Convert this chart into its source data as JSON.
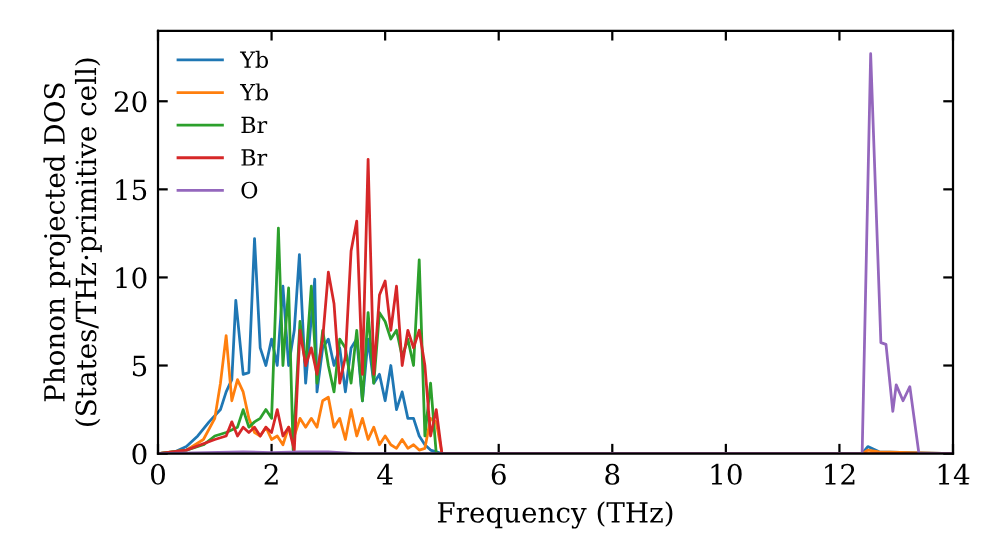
{
  "chart_data": {
    "type": "line",
    "xlabel": "Frequency (THz)",
    "ylabel": "Phonon projected DOS\n(States/THz·primitive cell)",
    "xlim": [
      0,
      14
    ],
    "ylim": [
      0,
      24
    ],
    "xticks": [
      0,
      2,
      4,
      6,
      8,
      10,
      12,
      14
    ],
    "yticks": [
      0,
      5,
      10,
      15,
      20
    ],
    "grid": false,
    "legend": "top left",
    "marker": "none",
    "line_style": "solid",
    "series": [
      {
        "name": "Yb",
        "color": "#1f77b4",
        "x": [
          0,
          0.3,
          0.5,
          0.7,
          0.9,
          1.1,
          1.2,
          1.3,
          1.37,
          1.5,
          1.6,
          1.7,
          1.8,
          1.9,
          2.0,
          2.1,
          2.2,
          2.3,
          2.4,
          2.49,
          2.6,
          2.76,
          2.8,
          2.9,
          3.0,
          3.1,
          3.2,
          3.3,
          3.4,
          3.5,
          3.6,
          3.7,
          3.8,
          3.9,
          4.0,
          4.1,
          4.2,
          4.3,
          4.4,
          4.5,
          4.6,
          4.7,
          4.8,
          4.9,
          5.0,
          12.4,
          12.5,
          12.7,
          14
        ],
        "values": [
          0,
          0.1,
          0.4,
          1.0,
          1.8,
          2.5,
          3.5,
          4.2,
          8.7,
          4.5,
          4.6,
          12.2,
          6.0,
          5.0,
          6.5,
          5.0,
          9.5,
          5.0,
          7.0,
          11.3,
          4.0,
          9.9,
          3.5,
          6.0,
          6.5,
          5.0,
          6.0,
          3.5,
          6.0,
          6.5,
          3.0,
          6.5,
          4.0,
          4.5,
          3.0,
          5.0,
          2.5,
          3.5,
          2.0,
          2.0,
          1.0,
          0.5,
          0.2,
          0.1,
          0,
          0,
          0.4,
          0.1,
          0
        ]
      },
      {
        "name": "Yb",
        "color": "#ff7f0e",
        "x": [
          0,
          0.5,
          0.8,
          1.0,
          1.1,
          1.2,
          1.3,
          1.4,
          1.5,
          1.6,
          1.7,
          1.8,
          1.9,
          2.0,
          2.1,
          2.2,
          2.3,
          2.4,
          2.5,
          2.6,
          2.7,
          2.8,
          2.9,
          3.0,
          3.1,
          3.2,
          3.3,
          3.4,
          3.5,
          3.6,
          3.7,
          3.8,
          3.9,
          4.0,
          4.1,
          4.2,
          4.3,
          4.4,
          4.5,
          4.6,
          4.7,
          4.8,
          4.9,
          5.0,
          12.4,
          12.5,
          12.7,
          14
        ],
        "values": [
          0,
          0.2,
          0.8,
          2.0,
          4.0,
          6.7,
          3.0,
          4.2,
          3.5,
          2.0,
          1.2,
          1.0,
          1.5,
          0.8,
          1.0,
          0.5,
          1.5,
          1.0,
          2.0,
          1.5,
          2.0,
          1.5,
          3.0,
          3.2,
          1.5,
          2.0,
          0.8,
          2.5,
          1.0,
          2.0,
          0.8,
          1.5,
          0.5,
          1.0,
          0.5,
          0.3,
          0.8,
          0.3,
          0.5,
          0.2,
          0.3,
          2.0,
          1.8,
          0,
          0,
          0.2,
          0.1,
          0
        ]
      },
      {
        "name": "Br",
        "color": "#2ca02c",
        "x": [
          0,
          0.5,
          0.8,
          1.0,
          1.2,
          1.4,
          1.5,
          1.6,
          1.7,
          1.8,
          1.9,
          2.0,
          2.12,
          2.2,
          2.3,
          2.38,
          2.5,
          2.6,
          2.7,
          2.8,
          2.9,
          3.0,
          3.1,
          3.2,
          3.3,
          3.4,
          3.5,
          3.6,
          3.7,
          3.8,
          3.9,
          4.0,
          4.1,
          4.2,
          4.3,
          4.4,
          4.5,
          4.6,
          4.7,
          4.8,
          4.9,
          5.0,
          14
        ],
        "values": [
          0,
          0.2,
          0.5,
          1.0,
          1.2,
          1.5,
          2.5,
          1.5,
          1.8,
          2.0,
          2.5,
          2.0,
          12.8,
          5.0,
          9.4,
          0.2,
          7.5,
          5.0,
          9.5,
          4.0,
          7.0,
          5.0,
          3.5,
          6.5,
          6.0,
          4.0,
          7.0,
          3.0,
          8.0,
          4.0,
          8.0,
          7.5,
          6.5,
          7.0,
          5.5,
          6.5,
          5.0,
          11.0,
          1.0,
          4.0,
          0,
          0,
          0
        ]
      },
      {
        "name": "Br",
        "color": "#d62728",
        "x": [
          0,
          0.5,
          1.0,
          1.2,
          1.3,
          1.4,
          1.5,
          1.6,
          1.7,
          1.8,
          1.9,
          2.0,
          2.1,
          2.2,
          2.3,
          2.4,
          2.5,
          2.6,
          2.7,
          2.8,
          2.9,
          3.0,
          3.1,
          3.2,
          3.3,
          3.4,
          3.5,
          3.6,
          3.7,
          3.8,
          3.9,
          4.0,
          4.1,
          4.2,
          4.3,
          4.4,
          4.5,
          4.6,
          4.7,
          4.8,
          4.9,
          5.0,
          14
        ],
        "values": [
          0,
          0.2,
          0.8,
          1.0,
          1.8,
          1.0,
          1.5,
          1.2,
          1.5,
          1.0,
          1.5,
          1.2,
          2.5,
          1.0,
          1.5,
          0.2,
          7.0,
          5.0,
          6.0,
          4.5,
          6.5,
          10.3,
          8.5,
          4.0,
          5.5,
          11.5,
          13.2,
          4.5,
          16.7,
          4.5,
          9.0,
          9.8,
          7.0,
          9.5,
          5.0,
          7.0,
          6.0,
          7.0,
          5.0,
          1.0,
          2.5,
          0,
          0
        ]
      },
      {
        "name": "O",
        "color": "#9467bd",
        "x": [
          0,
          1.5,
          2.0,
          2.5,
          3.0,
          3.5,
          12.4,
          12.55,
          12.73,
          12.82,
          12.94,
          13.0,
          13.12,
          13.24,
          13.4,
          14
        ],
        "values": [
          0,
          0.1,
          0.05,
          0.1,
          0.1,
          0,
          0,
          22.7,
          6.3,
          6.2,
          2.4,
          3.9,
          3.0,
          3.8,
          0,
          0
        ]
      }
    ]
  }
}
